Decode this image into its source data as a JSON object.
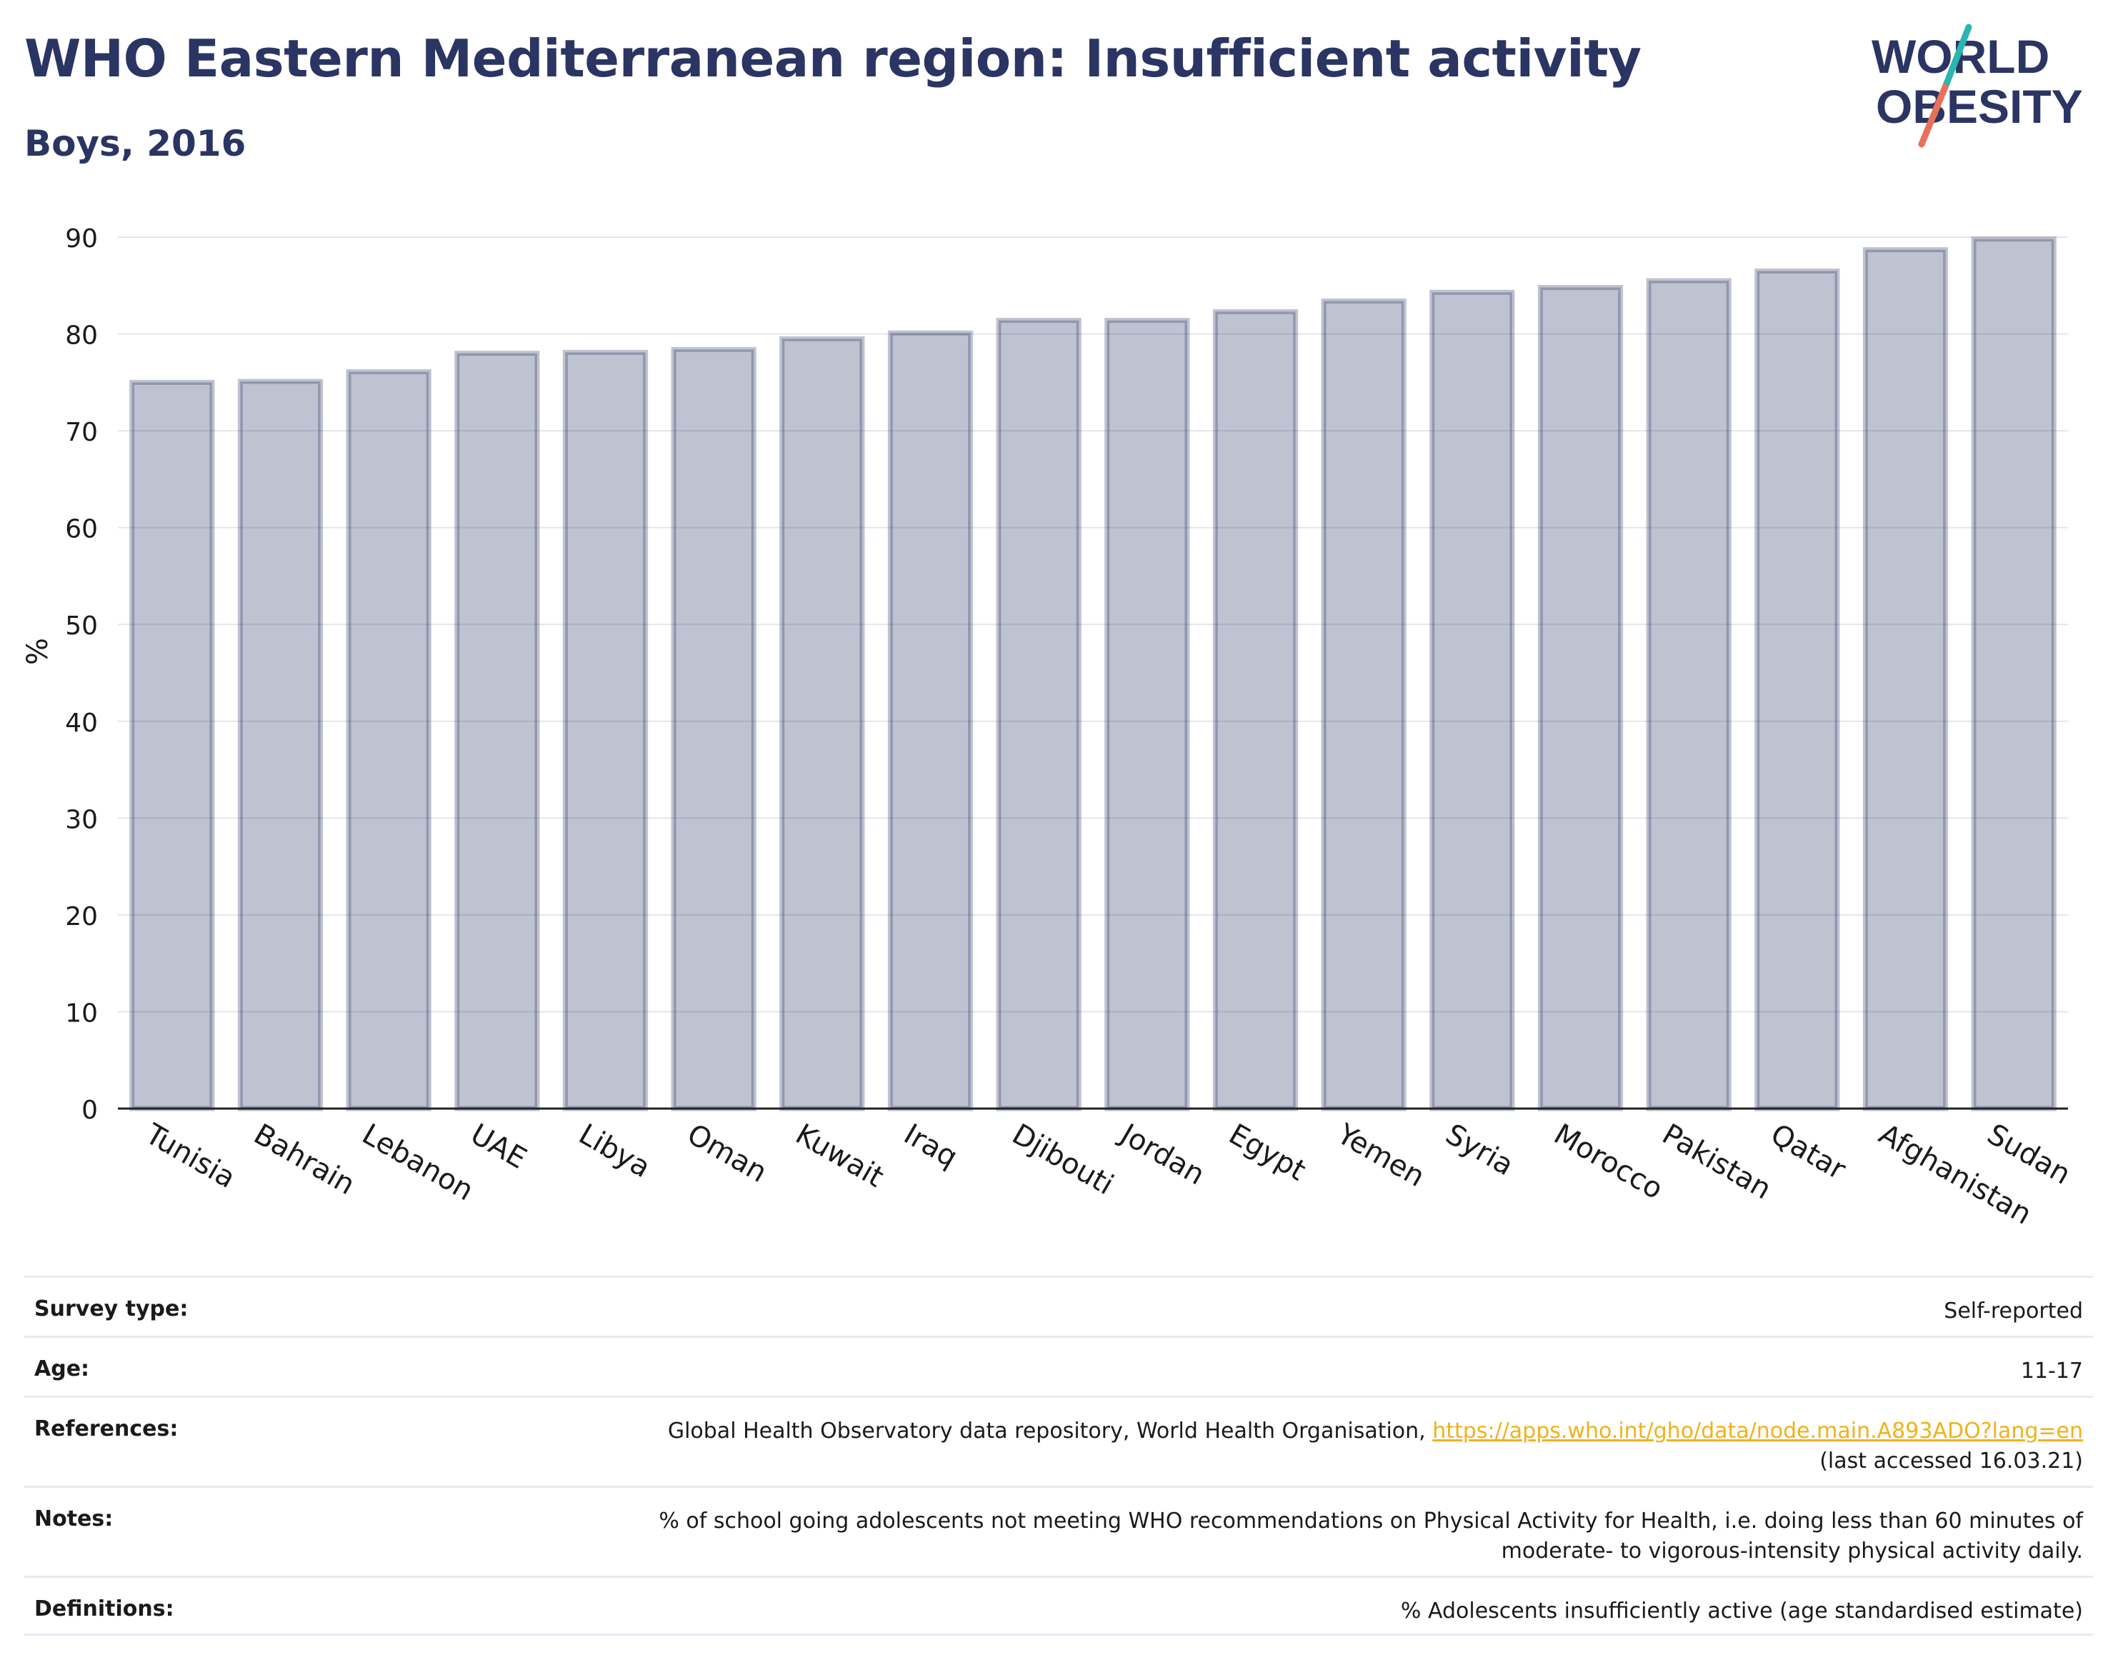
{
  "header": {
    "title": "WHO Eastern Mediterranean region: Insufficient activity",
    "subtitle": "Boys, 2016"
  },
  "logo": {
    "line1": "WORLD",
    "line2": "OBESITY",
    "colors": {
      "text": "#2b3563",
      "slash_top": "#2bb5b0",
      "slash_bottom": "#e8715a"
    }
  },
  "chart_data": {
    "type": "bar",
    "title": "WHO Eastern Mediterranean region: Insufficient activity",
    "subtitle": "Boys, 2016",
    "xlabel": "",
    "ylabel": "%",
    "ylim": [
      0,
      90
    ],
    "yticks": [
      0,
      10,
      20,
      30,
      40,
      50,
      60,
      70,
      80,
      90
    ],
    "grid": true,
    "bar_color": "#2b3563",
    "categories": [
      "Tunisia",
      "Bahrain",
      "Lebanon",
      "UAE",
      "Libya",
      "Oman",
      "Kuwait",
      "Iraq",
      "Djibouti",
      "Jordan",
      "Egypt",
      "Yemen",
      "Syria",
      "Morocco",
      "Pakistan",
      "Qatar",
      "Afghanistan",
      "Sudan"
    ],
    "values": [
      75.0,
      75.1,
      76.1,
      78.0,
      78.1,
      78.4,
      79.5,
      80.1,
      81.4,
      81.4,
      82.3,
      83.4,
      84.3,
      84.8,
      85.5,
      86.5,
      88.7,
      89.8
    ]
  },
  "info": {
    "survey_type": {
      "label": "Survey type:",
      "value": "Self-reported"
    },
    "age": {
      "label": "Age:",
      "value": "11-17"
    },
    "references": {
      "label": "References:",
      "value": "Global Health Observatory data repository, World Health Organisation,",
      "link": "https://apps.who.int/gho/data/node.main.A893ADO?lang=en",
      "suffix": "(last accessed 16.03.21)"
    },
    "notes": {
      "label": "Notes:",
      "line1": "% of school going adolescents not meeting WHO recommendations on Physical Activity for Health, i.e. doing less than 60 minutes of",
      "line2": "moderate- to vigorous-intensity physical activity daily."
    },
    "definitions": {
      "label": "Definitions:",
      "value": "% Adolescents insufficiently active (age standardised estimate)"
    }
  }
}
